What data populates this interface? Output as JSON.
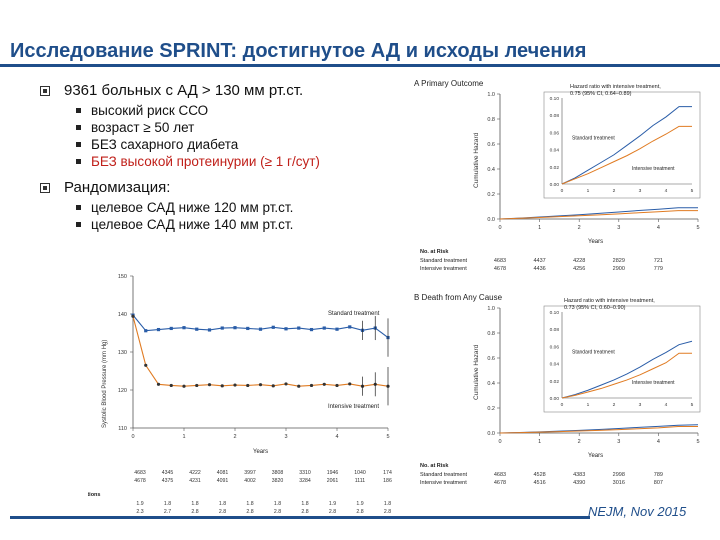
{
  "slide": {
    "title": "Исследование SPRINT: достигнутое АД и исходы лечения",
    "citation": "NEJM, Nov 2015"
  },
  "bullets": {
    "b1": "9361 больных с АД > 130 мм рт.ст.",
    "b1_sub": [
      "высокий риск ССО",
      "возраст ≥ 50 лет",
      "БЕЗ сахарного диабета",
      "БЕЗ высокой протеинурии (≥ 1 г/сут)"
    ],
    "b2": "Рандомизация:",
    "b2_sub": [
      "целевое САД ниже 120 мм рт.ст.",
      "целевое САД ниже 140 мм рт.ст."
    ]
  },
  "bp_chart": {
    "ylabel": "Systolic Blood Pressure (mm Hg)",
    "xlabel": "Years",
    "std_label": "Standard treatment",
    "int_label": "Intensive treatment",
    "yticks": [
      "150",
      "140",
      "130",
      "120",
      "110"
    ],
    "xticks": [
      "0",
      "1",
      "2",
      "3",
      "4",
      "5"
    ],
    "table": {
      "h1": "No. with Data",
      "h2": "Mean No. of Medications",
      "std": "Standard treatment",
      "int": "Intensive treatment",
      "std_n": [
        "4683",
        "4345",
        "4222",
        "4081",
        "3997",
        "3808",
        "3310",
        "1946",
        "1040",
        "174"
      ],
      "int_n": [
        "4678",
        "4375",
        "4231",
        "4091",
        "4002",
        "3820",
        "3284",
        "2061",
        "1111",
        "186"
      ],
      "std_m": [
        "1.9",
        "1.8",
        "1.8",
        "1.8",
        "1.8",
        "1.8",
        "1.8",
        "1.9",
        "1.9",
        "1.8"
      ],
      "int_m": [
        "2.3",
        "2.7",
        "2.8",
        "2.8",
        "2.8",
        "2.8",
        "2.8",
        "2.8",
        "2.8",
        "2.8"
      ]
    }
  },
  "chart_data": [
    {
      "type": "line",
      "title": "",
      "xlabel": "Years",
      "ylabel": "Systolic Blood Pressure (mm Hg)",
      "ylim": [
        110,
        150
      ],
      "x": [
        0.0,
        0.25,
        0.5,
        0.75,
        1.0,
        1.25,
        1.5,
        1.75,
        2.0,
        2.25,
        2.5,
        2.75,
        3.0,
        3.25,
        3.5,
        3.75,
        4.0,
        4.25,
        4.5,
        4.75,
        5.0
      ],
      "series": [
        {
          "name": "Standard treatment",
          "color": "#2a5da8",
          "values": [
            139.7,
            135.6,
            135.9,
            136.2,
            136.4,
            136.0,
            135.8,
            136.3,
            136.4,
            136.2,
            136.0,
            136.5,
            136.1,
            136.3,
            135.9,
            136.3,
            136.0,
            136.6,
            135.7,
            136.3,
            133.8
          ]
        },
        {
          "name": "Intensive treatment",
          "color": "#e07b22",
          "values": [
            139.4,
            126.5,
            121.5,
            121.2,
            121.0,
            121.2,
            121.4,
            121.1,
            121.3,
            121.2,
            121.4,
            121.1,
            121.6,
            121.0,
            121.2,
            121.5,
            121.2,
            121.6,
            121.0,
            121.5,
            121.0
          ]
        }
      ]
    },
    {
      "type": "line",
      "title": "A Primary Outcome",
      "xlabel": "Years",
      "ylabel": "Cumulative Hazard",
      "ylim": [
        0.0,
        1.0
      ],
      "xticks": [
        "0",
        "1",
        "2",
        "3",
        "4",
        "5"
      ],
      "inset_ylim": [
        0.0,
        0.1
      ],
      "inset_yticks": [
        "0.10",
        "0.08",
        "0.06",
        "0.04",
        "0.02",
        "0.00"
      ],
      "annotation": "Hazard ratio with intensive treatment, 0.75 (95% CI, 0.64–0.89)",
      "x": [
        0,
        0.5,
        1,
        1.5,
        2,
        2.5,
        3,
        3.5,
        4,
        4.5,
        5
      ],
      "series": [
        {
          "name": "Standard treatment",
          "color": "#2a5da8",
          "values": [
            0.0,
            0.007,
            0.016,
            0.025,
            0.034,
            0.045,
            0.056,
            0.068,
            0.078,
            0.09,
            0.09
          ]
        },
        {
          "name": "Intensive treatment",
          "color": "#e07b22",
          "values": [
            0.0,
            0.006,
            0.012,
            0.019,
            0.026,
            0.033,
            0.041,
            0.05,
            0.058,
            0.067,
            0.067
          ]
        }
      ],
      "risk_table": {
        "header": "No. at Risk",
        "std": "Standard treatment",
        "int": "Intensive treatment",
        "std_values": [
          "4683",
          "4437",
          "4228",
          "2829",
          "721"
        ],
        "int_values": [
          "4678",
          "4436",
          "4256",
          "2900",
          "779"
        ]
      }
    },
    {
      "type": "line",
      "title": "B Death from Any Cause",
      "xlabel": "Years",
      "ylabel": "Cumulative Hazard",
      "ylim": [
        0.0,
        1.0
      ],
      "xticks": [
        "0",
        "1",
        "2",
        "3",
        "4",
        "5"
      ],
      "inset_ylim": [
        0.0,
        0.1
      ],
      "inset_yticks": [
        "0.10",
        "0.08",
        "0.06",
        "0.04",
        "0.02",
        "0.00"
      ],
      "annotation": "Hazard ratio with intensive treatment, 0.73 (95% CI, 0.60–0.90)",
      "x": [
        0,
        0.5,
        1,
        1.5,
        2,
        2.5,
        3,
        3.5,
        4,
        4.5,
        5
      ],
      "series": [
        {
          "name": "Standard treatment",
          "color": "#2a5da8",
          "values": [
            0.0,
            0.004,
            0.009,
            0.015,
            0.021,
            0.028,
            0.036,
            0.045,
            0.053,
            0.062,
            0.066
          ]
        },
        {
          "name": "Intensive treatment",
          "color": "#e07b22",
          "values": [
            0.0,
            0.003,
            0.007,
            0.011,
            0.016,
            0.021,
            0.027,
            0.034,
            0.041,
            0.052,
            0.052
          ]
        }
      ],
      "risk_table": {
        "header": "No. at Risk",
        "std": "Standard treatment",
        "int": "Intensive treatment",
        "std_values": [
          "4683",
          "4528",
          "4383",
          "2998",
          "789"
        ],
        "int_values": [
          "4678",
          "4516",
          "4390",
          "3016",
          "807"
        ]
      }
    }
  ]
}
